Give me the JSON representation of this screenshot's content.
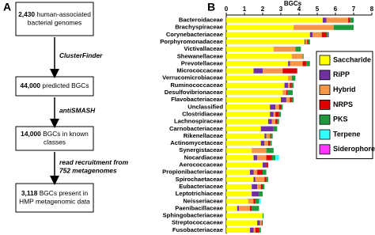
{
  "panel_a": {
    "label": "A",
    "boxes": [
      {
        "count": "2,430",
        "lines": [
          "human-associated",
          "bacterial genomes"
        ]
      },
      {
        "count": "44,000",
        "lines": [
          "predicted BGCs"
        ]
      },
      {
        "count": "14,000",
        "lines": [
          "BGCs in known",
          "classes"
        ]
      },
      {
        "count": "3,118",
        "lines": [
          "BGCs present in",
          "HMP metagenomic data"
        ]
      }
    ],
    "arrows": [
      [
        "ClusterFinder"
      ],
      [
        "antiSMASH"
      ],
      [
        "read recruitment from",
        "752 metagenomes"
      ]
    ]
  },
  "chart_data": {
    "type": "bar",
    "orientation": "horizontal",
    "stacked": true,
    "panel_label": "B",
    "x_label": "BGCs",
    "xlim": [
      0,
      8
    ],
    "xticks": [
      0,
      1,
      2,
      3,
      4,
      5,
      6,
      7,
      8
    ],
    "legend": "upper right",
    "categories": [
      "Bacteroidaceae",
      "Brachyspiraceae",
      "Corynebacteriaceae",
      "Porphyromonadaceae",
      "Victivallaceae",
      "Shewanellaceae",
      "Prevotellaceae",
      "Micrococcaceae",
      "Verrucomicrobiaceae",
      "Ruminococcaceae",
      "Desulfovibrionaceae",
      "Flavobacteriaceae",
      "Unclassified",
      "Clostridiaceae",
      "Lachnospiraceae",
      "Carnobacteriaceae",
      "Rikenellaceae",
      "Actinomycetaceae",
      "Synergistaceae",
      "Nocardiaceae",
      "Aerococcaceae",
      "Propionibacteriaceae",
      "Spirochaetaceae",
      "Eubacteriaceae",
      "Leptotrichiaceae",
      "Neisseriaceae",
      "Paenibacillaceae",
      "Sphingobacteriaceae",
      "Streptococcaceae",
      "Fusobacteriaceae"
    ],
    "series": [
      {
        "name": "Saccharide",
        "color": "#ffff00",
        "values": [
          5.3,
          3.7,
          4.6,
          4.3,
          2.6,
          3.6,
          3.4,
          1.5,
          3.4,
          3.2,
          3.1,
          3.0,
          2.4,
          2.4,
          2.3,
          1.9,
          2.1,
          1.9,
          1.4,
          1.5,
          2.0,
          1.3,
          1.5,
          1.4,
          1.4,
          1.2,
          0.6,
          2.0,
          1.7,
          1.3
        ]
      },
      {
        "name": "RiPP",
        "color": "#7030a0",
        "values": [
          0.2,
          0,
          0.15,
          0.05,
          0,
          0,
          0.1,
          0.5,
          0,
          0.2,
          0,
          0.3,
          0.3,
          0.2,
          0.2,
          0.7,
          0.1,
          0.2,
          0,
          0.2,
          0.2,
          0.2,
          0.1,
          0.3,
          0.4,
          0,
          0.1,
          0,
          0.15,
          0.2
        ]
      },
      {
        "name": "Hybrid",
        "color": "#f79646",
        "values": [
          1.2,
          2.2,
          0.5,
          0.1,
          1.2,
          0.6,
          0.7,
          1.1,
          0.2,
          0.1,
          0.2,
          0.2,
          0.2,
          0.1,
          0.2,
          0,
          0.2,
          0.2,
          0.8,
          0.5,
          0,
          0.2,
          0.5,
          0.2,
          0,
          0.3,
          0.6,
          0,
          0.1,
          0.1
        ]
      },
      {
        "name": "NRPS",
        "color": "#e00000",
        "values": [
          0.1,
          0,
          0.25,
          0.05,
          0,
          0,
          0.2,
          0.8,
          0,
          0.1,
          0.05,
          0.1,
          0.1,
          0.2,
          0.1,
          0,
          0.05,
          0.1,
          0,
          0.3,
          0.1,
          0.3,
          0.1,
          0.1,
          0,
          0.1,
          0.1,
          0,
          0.05,
          0.2
        ]
      },
      {
        "name": "PKS",
        "color": "#1e9a3c",
        "values": [
          0.2,
          1.1,
          0.1,
          0.1,
          0.3,
          0.05,
          0.2,
          0,
          0.2,
          0.1,
          0.3,
          0.1,
          0.1,
          0.1,
          0.1,
          0.2,
          0.1,
          0.1,
          0.4,
          0.2,
          0,
          0.2,
          0.1,
          0.1,
          0.2,
          0.2,
          0.4,
          0.05,
          0,
          0.1
        ]
      },
      {
        "name": "Terpene",
        "color": "#33ffff",
        "values": [
          0,
          0,
          0,
          0,
          0,
          0,
          0,
          0,
          0,
          0,
          0,
          0,
          0,
          0,
          0,
          0,
          0,
          0,
          0,
          0.2,
          0,
          0,
          0,
          0,
          0,
          0.1,
          0,
          0,
          0,
          0
        ]
      },
      {
        "name": "Siderophore",
        "color": "#ff33ff",
        "values": [
          0,
          0,
          0.05,
          0,
          0,
          0,
          0,
          0,
          0,
          0,
          0,
          0,
          0,
          0,
          0,
          0,
          0,
          0,
          0,
          0,
          0,
          0,
          0,
          0,
          0,
          0,
          0,
          0,
          0,
          0
        ]
      }
    ]
  }
}
